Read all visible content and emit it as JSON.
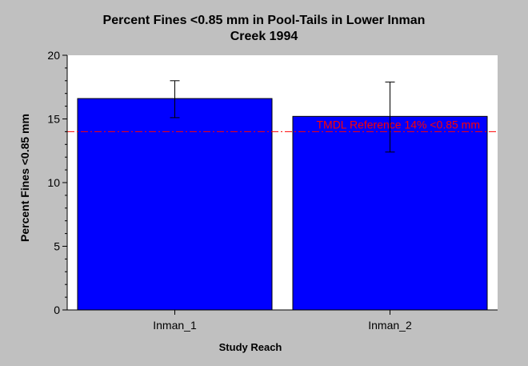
{
  "chart_data": {
    "type": "bar",
    "title": [
      "Percent Fines <0.85 mm in Pool-Tails in Lower Inman",
      "Creek 1994"
    ],
    "xlabel": "Study Reach",
    "ylabel": "Percent Fines <0.85 mm",
    "categories": [
      "Inman_1",
      "Inman_2"
    ],
    "series": [
      {
        "values": [
          16.6,
          15.2
        ],
        "error_low": [
          15.1,
          12.4
        ],
        "error_high": [
          18.0,
          17.9
        ],
        "color": "#0000ff"
      }
    ],
    "ylim": [
      0,
      20
    ],
    "yticks": [
      0,
      5,
      10,
      15,
      20
    ],
    "grid": false,
    "reference_line": {
      "value": 14,
      "label": "TMDL Reference 14% <0.85 mm",
      "color": "#ff0000"
    }
  }
}
